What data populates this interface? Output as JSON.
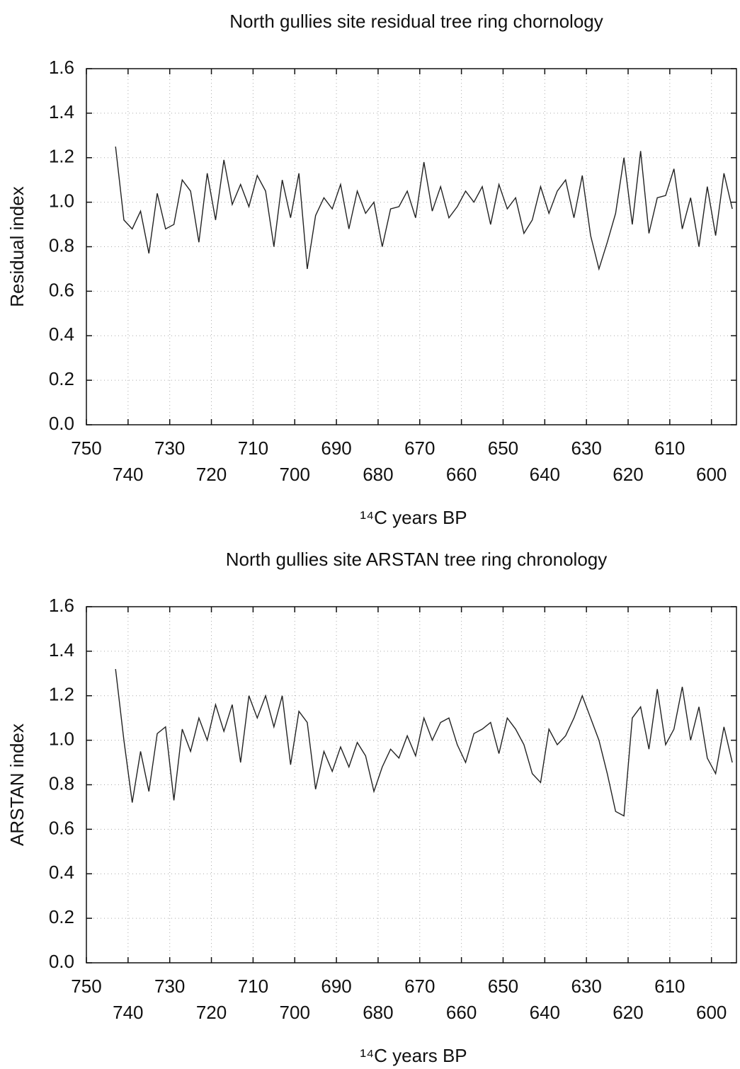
{
  "chart_data": [
    {
      "type": "line",
      "title": "North gullies site residual tree ring chornology",
      "x_label": "¹⁴C years BP",
      "y_label": "Residual index",
      "color": "#222222",
      "grid": true,
      "x": [
        743,
        741,
        739,
        737,
        735,
        733,
        731,
        729,
        727,
        725,
        723,
        721,
        719,
        717,
        715,
        713,
        711,
        709,
        707,
        705,
        703,
        701,
        699,
        697,
        695,
        693,
        691,
        689,
        687,
        685,
        683,
        681,
        679,
        677,
        675,
        673,
        671,
        669,
        667,
        665,
        663,
        661,
        659,
        657,
        655,
        653,
        651,
        649,
        647,
        645,
        643,
        641,
        639,
        637,
        635,
        633,
        631,
        629,
        627,
        625,
        623,
        621,
        619,
        617,
        615,
        613,
        611,
        609,
        607,
        605,
        603,
        601,
        599,
        597,
        595
      ],
      "values": [
        1.25,
        0.92,
        0.88,
        0.96,
        0.77,
        1.04,
        0.88,
        0.9,
        1.1,
        1.05,
        0.82,
        1.13,
        0.92,
        1.19,
        0.99,
        1.08,
        0.98,
        1.12,
        1.05,
        0.8,
        1.1,
        0.93,
        1.13,
        0.7,
        0.94,
        1.02,
        0.97,
        1.08,
        0.88,
        1.05,
        0.95,
        1.0,
        0.8,
        0.97,
        0.98,
        1.05,
        0.93,
        1.18,
        0.96,
        1.07,
        0.93,
        0.98,
        1.05,
        1.0,
        1.07,
        0.9,
        1.08,
        0.97,
        1.02,
        0.86,
        0.92,
        1.07,
        0.95,
        1.05,
        1.1,
        0.93,
        1.12,
        0.85,
        0.7,
        0.82,
        0.95,
        1.2,
        0.9,
        1.23,
        0.86,
        1.02,
        1.03,
        1.15,
        0.88,
        1.02,
        0.8,
        1.07,
        0.85,
        1.13,
        0.97
      ],
      "xlim": [
        750,
        594
      ],
      "xticks": [
        750,
        740,
        730,
        720,
        710,
        700,
        690,
        680,
        670,
        660,
        650,
        640,
        630,
        620,
        610,
        600
      ],
      "ylim": [
        0,
        1.6
      ],
      "yticks": [
        {
          "value": 0,
          "label": "0.0"
        },
        0.2,
        0.4,
        0.6,
        0.8,
        {
          "value": 1,
          "label": "1.0"
        },
        1.2,
        1.4,
        1.6
      ]
    },
    {
      "type": "line",
      "title": "North gullies site ARSTAN tree ring chronology",
      "x_label": "¹⁴C years BP",
      "y_label": "ARSTAN index",
      "color": "#222222",
      "grid": true,
      "x": [
        743,
        741,
        739,
        737,
        735,
        733,
        731,
        729,
        727,
        725,
        723,
        721,
        719,
        717,
        715,
        713,
        711,
        709,
        707,
        705,
        703,
        701,
        699,
        697,
        695,
        693,
        691,
        689,
        687,
        685,
        683,
        681,
        679,
        677,
        675,
        673,
        671,
        669,
        667,
        665,
        663,
        661,
        659,
        657,
        655,
        653,
        651,
        649,
        647,
        645,
        643,
        641,
        639,
        637,
        635,
        633,
        631,
        629,
        627,
        625,
        623,
        621,
        619,
        617,
        615,
        613,
        611,
        609,
        607,
        605,
        603,
        601,
        599,
        597,
        595
      ],
      "values": [
        1.32,
        1.0,
        0.72,
        0.95,
        0.77,
        1.03,
        1.06,
        0.73,
        1.05,
        0.95,
        1.1,
        1.0,
        1.16,
        1.04,
        1.16,
        0.9,
        1.2,
        1.1,
        1.2,
        1.06,
        1.2,
        0.89,
        1.13,
        1.08,
        0.78,
        0.95,
        0.86,
        0.97,
        0.88,
        0.99,
        0.93,
        0.77,
        0.88,
        0.96,
        0.92,
        1.02,
        0.93,
        1.1,
        1.0,
        1.08,
        1.1,
        0.98,
        0.9,
        1.03,
        1.05,
        1.08,
        0.94,
        1.1,
        1.05,
        0.98,
        0.85,
        0.81,
        1.05,
        0.98,
        1.02,
        1.1,
        1.2,
        1.1,
        1.0,
        0.85,
        0.68,
        0.66,
        1.1,
        1.15,
        0.96,
        1.23,
        0.98,
        1.05,
        1.24,
        1.0,
        1.15,
        0.92,
        0.85,
        1.06,
        0.9
      ],
      "xlim": [
        750,
        594
      ],
      "xticks": [
        750,
        740,
        730,
        720,
        710,
        700,
        690,
        680,
        670,
        660,
        650,
        640,
        630,
        620,
        610,
        600
      ],
      "ylim": [
        0,
        1.6
      ],
      "yticks": [
        {
          "value": 0,
          "label": "0.0"
        },
        0.2,
        0.4,
        0.6,
        0.8,
        {
          "value": 1,
          "label": "1.0"
        },
        1.2,
        1.4,
        1.6
      ]
    }
  ]
}
